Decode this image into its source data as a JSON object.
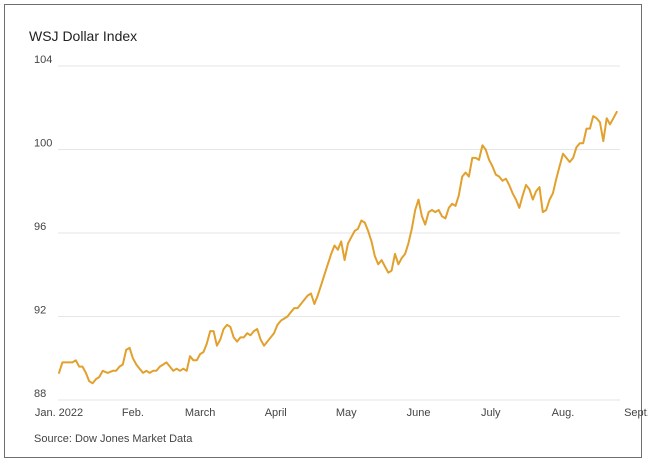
{
  "chart_data": {
    "type": "line",
    "title": "WSJ Dollar Index",
    "xlabel": "",
    "ylabel": "",
    "source": "Source: Dow Jones Market Data",
    "ylim": [
      88,
      104
    ],
    "xlim": [
      0,
      37.4
    ],
    "y_ticks": [
      {
        "value": 88,
        "label": "88"
      },
      {
        "value": 92,
        "label": "92"
      },
      {
        "value": 96,
        "label": "96"
      },
      {
        "value": 100,
        "label": "100"
      },
      {
        "value": 104,
        "label": "104"
      }
    ],
    "x_ticks": [
      {
        "week": 0,
        "label": "Jan. 2022"
      },
      {
        "week": 4.4,
        "label": "Feb."
      },
      {
        "week": 8.4,
        "label": "March"
      },
      {
        "week": 12.9,
        "label": "April"
      },
      {
        "week": 17.1,
        "label": "May"
      },
      {
        "week": 21.4,
        "label": "June"
      },
      {
        "week": 25.7,
        "label": "July"
      },
      {
        "week": 30.0,
        "label": "Aug."
      },
      {
        "week": 34.4,
        "label": "Sept."
      }
    ],
    "grid": true,
    "colors": {
      "line": "#e2a02d",
      "grid": "#e6e6e6"
    },
    "series": [
      {
        "points": [
          [
            0,
            89.3
          ],
          [
            0.2,
            89.8
          ],
          [
            0.5,
            89.8
          ],
          [
            0.8,
            89.8
          ],
          [
            1.0,
            89.9
          ],
          [
            1.2,
            89.6
          ],
          [
            1.4,
            89.6
          ],
          [
            1.6,
            89.3
          ],
          [
            1.8,
            88.9
          ],
          [
            2.0,
            88.8
          ],
          [
            2.2,
            89.0
          ],
          [
            2.4,
            89.1
          ],
          [
            2.6,
            89.4
          ],
          [
            2.9,
            89.3
          ],
          [
            3.2,
            89.4
          ],
          [
            3.4,
            89.4
          ],
          [
            3.6,
            89.6
          ],
          [
            3.8,
            89.7
          ],
          [
            4.0,
            90.4
          ],
          [
            4.2,
            90.5
          ],
          [
            4.4,
            90.0
          ],
          [
            4.6,
            89.7
          ],
          [
            4.8,
            89.5
          ],
          [
            5.0,
            89.3
          ],
          [
            5.2,
            89.4
          ],
          [
            5.4,
            89.3
          ],
          [
            5.6,
            89.4
          ],
          [
            5.8,
            89.4
          ],
          [
            6.0,
            89.6
          ],
          [
            6.2,
            89.7
          ],
          [
            6.4,
            89.8
          ],
          [
            6.6,
            89.6
          ],
          [
            6.8,
            89.4
          ],
          [
            7.0,
            89.5
          ],
          [
            7.2,
            89.4
          ],
          [
            7.4,
            89.5
          ],
          [
            7.6,
            89.4
          ],
          [
            7.8,
            90.1
          ],
          [
            8.0,
            89.9
          ],
          [
            8.2,
            89.9
          ],
          [
            8.4,
            90.2
          ],
          [
            8.6,
            90.3
          ],
          [
            8.8,
            90.7
          ],
          [
            9.0,
            91.3
          ],
          [
            9.2,
            91.3
          ],
          [
            9.4,
            90.6
          ],
          [
            9.6,
            90.9
          ],
          [
            9.8,
            91.4
          ],
          [
            10.0,
            91.6
          ],
          [
            10.2,
            91.5
          ],
          [
            10.4,
            91.0
          ],
          [
            10.6,
            90.8
          ],
          [
            10.8,
            91.0
          ],
          [
            11.0,
            91.0
          ],
          [
            11.2,
            91.2
          ],
          [
            11.4,
            91.1
          ],
          [
            11.6,
            91.3
          ],
          [
            11.8,
            91.4
          ],
          [
            12.0,
            90.9
          ],
          [
            12.2,
            90.6
          ],
          [
            12.4,
            90.8
          ],
          [
            12.6,
            91.0
          ],
          [
            12.8,
            91.2
          ],
          [
            13.0,
            91.6
          ],
          [
            13.2,
            91.8
          ],
          [
            13.4,
            91.9
          ],
          [
            13.6,
            92.0
          ],
          [
            13.8,
            92.2
          ],
          [
            14.0,
            92.4
          ],
          [
            14.2,
            92.4
          ],
          [
            14.4,
            92.6
          ],
          [
            14.6,
            92.8
          ],
          [
            14.8,
            93.0
          ],
          [
            15.0,
            93.1
          ],
          [
            15.2,
            92.6
          ],
          [
            15.4,
            93.0
          ],
          [
            15.6,
            93.5
          ],
          [
            15.8,
            94.0
          ],
          [
            16.0,
            94.5
          ],
          [
            16.2,
            95.0
          ],
          [
            16.4,
            95.4
          ],
          [
            16.6,
            95.2
          ],
          [
            16.8,
            95.6
          ],
          [
            17.0,
            94.7
          ],
          [
            17.2,
            95.5
          ],
          [
            17.4,
            95.8
          ],
          [
            17.6,
            96.1
          ],
          [
            17.8,
            96.2
          ],
          [
            18.0,
            96.6
          ],
          [
            18.2,
            96.5
          ],
          [
            18.4,
            96.1
          ],
          [
            18.6,
            95.6
          ],
          [
            18.8,
            94.9
          ],
          [
            19.0,
            94.5
          ],
          [
            19.2,
            94.7
          ],
          [
            19.4,
            94.4
          ],
          [
            19.6,
            94.1
          ],
          [
            19.8,
            94.2
          ],
          [
            20.0,
            95.0
          ],
          [
            20.2,
            94.5
          ],
          [
            20.4,
            94.8
          ],
          [
            20.6,
            95.0
          ],
          [
            20.8,
            95.5
          ],
          [
            21.0,
            96.2
          ],
          [
            21.2,
            97.1
          ],
          [
            21.4,
            97.6
          ],
          [
            21.6,
            96.8
          ],
          [
            21.8,
            96.4
          ],
          [
            22.0,
            97.0
          ],
          [
            22.2,
            97.1
          ],
          [
            22.4,
            97.0
          ],
          [
            22.6,
            97.1
          ],
          [
            22.8,
            96.8
          ],
          [
            23.0,
            96.7
          ],
          [
            23.2,
            97.2
          ],
          [
            23.4,
            97.4
          ],
          [
            23.6,
            97.3
          ],
          [
            23.8,
            97.8
          ],
          [
            24.0,
            98.7
          ],
          [
            24.2,
            98.9
          ],
          [
            24.4,
            98.7
          ],
          [
            24.6,
            99.6
          ],
          [
            24.8,
            99.6
          ],
          [
            25.0,
            99.5
          ],
          [
            25.2,
            100.2
          ],
          [
            25.4,
            100.0
          ],
          [
            25.6,
            99.5
          ],
          [
            25.8,
            99.2
          ],
          [
            26.0,
            98.8
          ],
          [
            26.2,
            98.7
          ],
          [
            26.4,
            98.5
          ],
          [
            26.6,
            98.6
          ],
          [
            26.8,
            98.3
          ],
          [
            27.0,
            97.9
          ],
          [
            27.2,
            97.6
          ],
          [
            27.4,
            97.2
          ],
          [
            27.6,
            97.8
          ],
          [
            27.8,
            98.3
          ],
          [
            28.0,
            98.1
          ],
          [
            28.2,
            97.6
          ],
          [
            28.4,
            98.0
          ],
          [
            28.6,
            98.2
          ],
          [
            28.8,
            97.0
          ],
          [
            29.0,
            97.1
          ],
          [
            29.2,
            97.6
          ],
          [
            29.4,
            97.9
          ],
          [
            29.6,
            98.6
          ],
          [
            29.8,
            99.2
          ],
          [
            30.0,
            99.8
          ],
          [
            30.2,
            99.6
          ],
          [
            30.4,
            99.4
          ],
          [
            30.6,
            99.6
          ],
          [
            30.8,
            100.1
          ],
          [
            31.0,
            100.3
          ],
          [
            31.2,
            100.3
          ],
          [
            31.4,
            101.0
          ],
          [
            31.6,
            101.0
          ],
          [
            31.8,
            101.6
          ],
          [
            32.0,
            101.5
          ],
          [
            32.2,
            101.3
          ],
          [
            32.4,
            100.4
          ],
          [
            32.6,
            101.5
          ],
          [
            32.8,
            101.2
          ],
          [
            33.0,
            101.5
          ],
          [
            33.2,
            101.8
          ]
        ]
      }
    ]
  }
}
